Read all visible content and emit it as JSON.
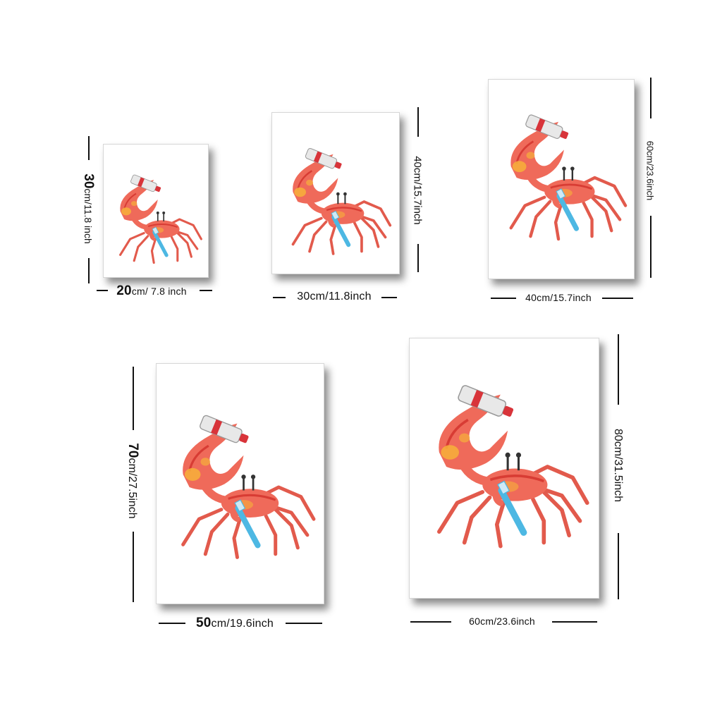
{
  "artwork": {
    "subject_icon": "crab-with-toothbrush-icon",
    "colors": {
      "crab": "#ef6a5a",
      "crab_dark": "#d83c34",
      "crab_highlight": "#f7b03a",
      "toothbrush": "#4db8e3",
      "tube": "#e8e8e8",
      "tube_stripe": "#d8343a"
    }
  },
  "sizes": [
    {
      "id": "s1",
      "width_big": "20",
      "width_rest": "cm/ 7.8 inch",
      "height_big": "30",
      "height_rest": "cm/11.8 inch"
    },
    {
      "id": "s2",
      "width_label": "30cm/11.8inch",
      "height_label": "40cm/15.7inch"
    },
    {
      "id": "s3",
      "width_label": "40cm/15.7inch",
      "height_label": "60cm/23.6inch"
    },
    {
      "id": "s4",
      "width_big": "50",
      "width_rest": "cm/19.6inch",
      "height_big": "70",
      "height_rest": "cm/27.5inch"
    },
    {
      "id": "s5",
      "width_label": "60cm/23.6inch",
      "height_label": "80cm/31.5inch"
    }
  ]
}
